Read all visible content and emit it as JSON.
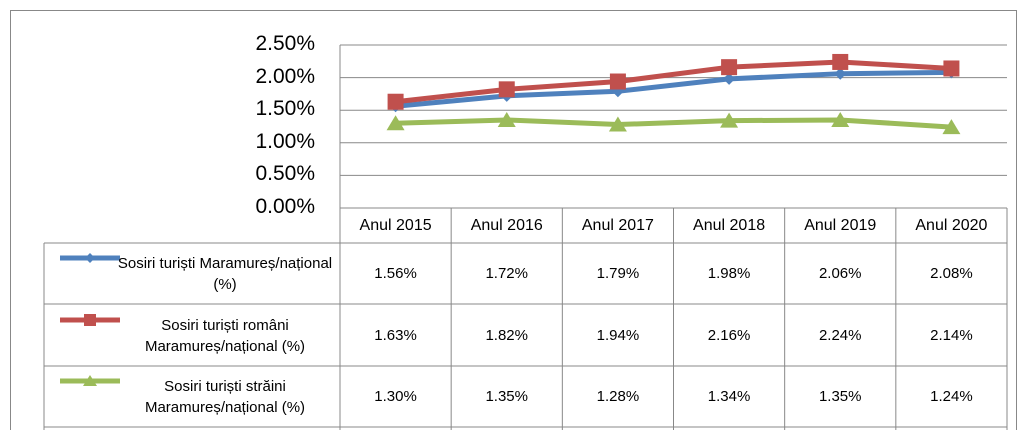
{
  "chart_data": {
    "type": "line",
    "categories": [
      "Anul 2015",
      "Anul 2016",
      "Anul 2017",
      "Anul 2018",
      "Anul 2019",
      "Anul 2020"
    ],
    "ylim": [
      0,
      2.5
    ],
    "yticks": [
      {
        "value": 0,
        "label": "0.00%"
      },
      {
        "value": 0.5,
        "label": "0.50%"
      },
      {
        "value": 1,
        "label": "1.00%"
      },
      {
        "value": 1.5,
        "label": "1.50%"
      },
      {
        "value": 2,
        "label": "2.00%"
      },
      {
        "value": 2.5,
        "label": "2.50%"
      }
    ],
    "grid": true,
    "series": [
      {
        "name": "Sosiri turiști Maramureș/național (%)",
        "color": "#4f81bd",
        "marker": "diamond",
        "values": [
          1.56,
          1.72,
          1.79,
          1.98,
          2.06,
          2.08
        ],
        "value_labels": [
          "1.56%",
          "1.72%",
          "1.79%",
          "1.98%",
          "2.06%",
          "2.08%"
        ]
      },
      {
        "name": "Sosiri turiști români Maramureș/național (%)",
        "color": "#c0504d",
        "marker": "square",
        "values": [
          1.63,
          1.82,
          1.94,
          2.16,
          2.24,
          2.14
        ],
        "value_labels": [
          "1.63%",
          "1.82%",
          "1.94%",
          "2.16%",
          "2.24%",
          "2.14%"
        ]
      },
      {
        "name": "Sosiri turiști străini Maramureș/național (%)",
        "color": "#9bbb59",
        "marker": "triangle",
        "values": [
          1.3,
          1.35,
          1.28,
          1.34,
          1.35,
          1.24
        ],
        "value_labels": [
          "1.30%",
          "1.35%",
          "1.28%",
          "1.34%",
          "1.35%",
          "1.24%"
        ]
      }
    ]
  }
}
